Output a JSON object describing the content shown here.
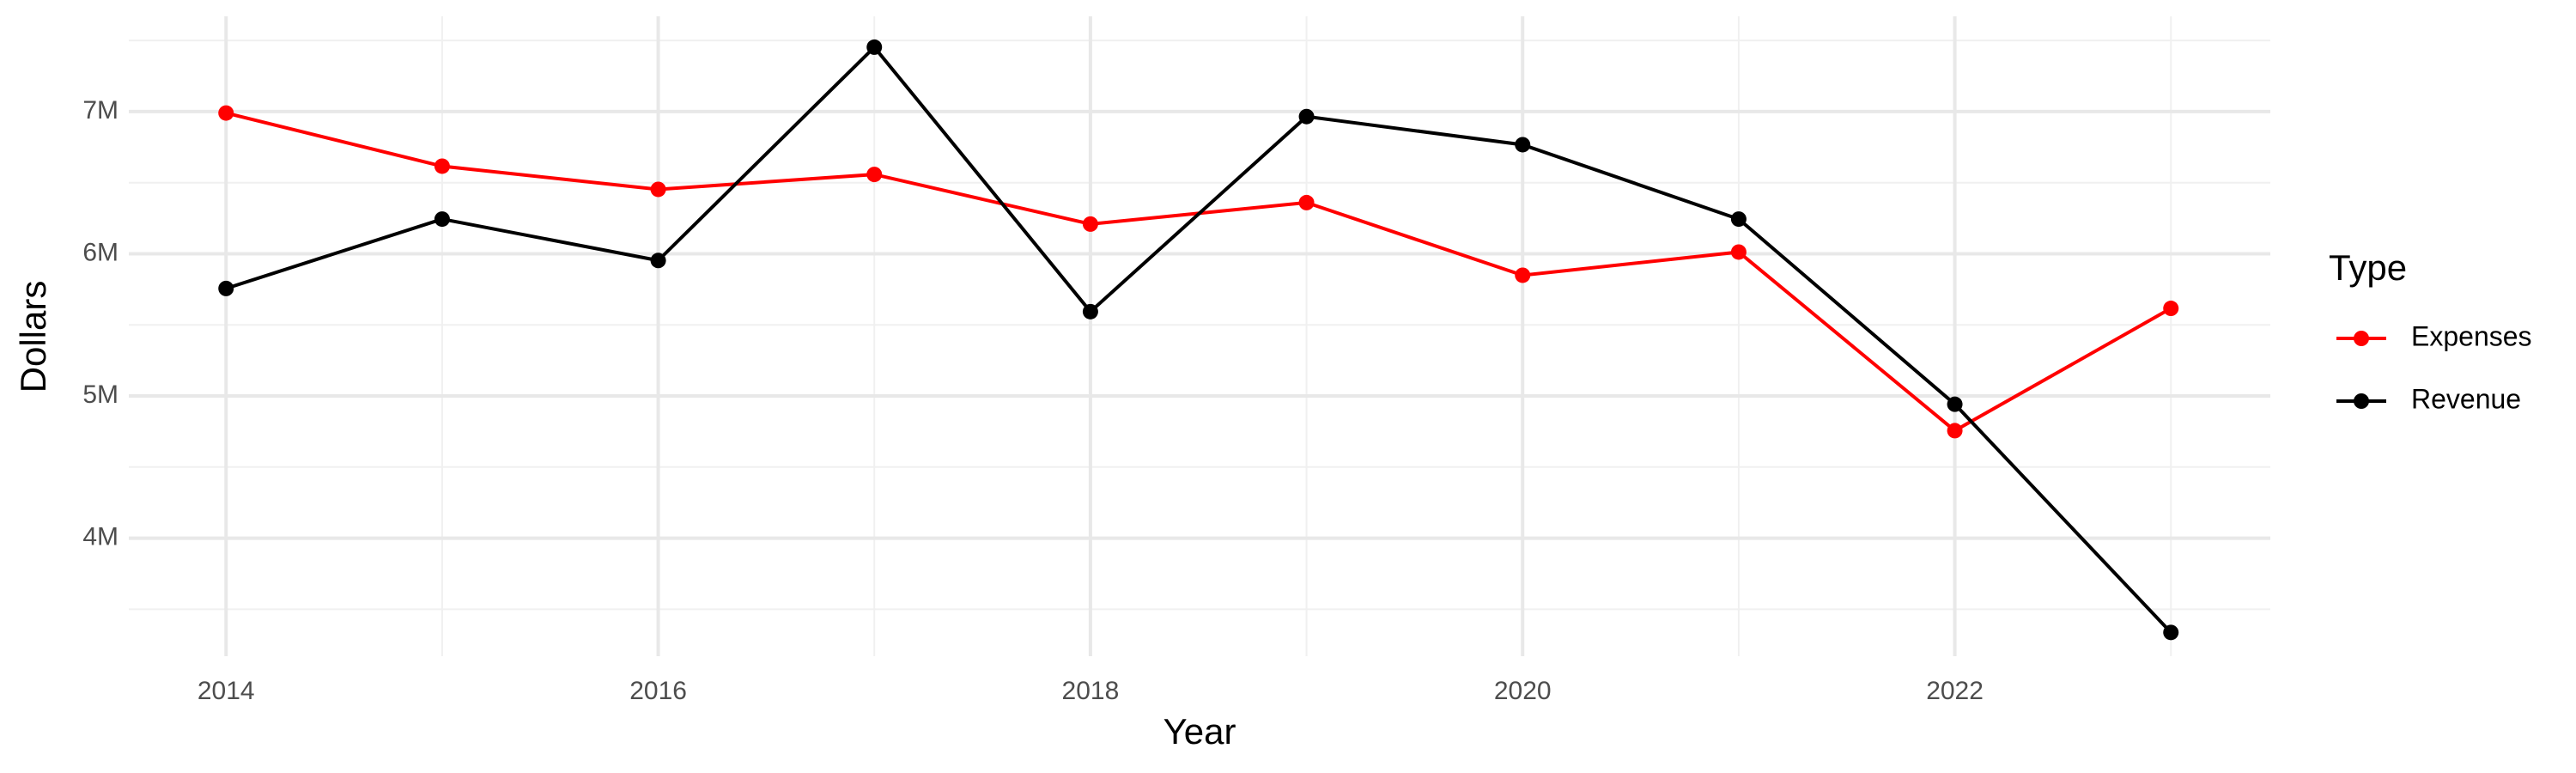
{
  "chart_data": {
    "type": "line",
    "x_label": "Year",
    "y_label": "Dollars",
    "legend_title": "Type",
    "x": [
      2014,
      2015,
      2016,
      2017,
      2018,
      2019,
      2020,
      2021,
      2022,
      2023
    ],
    "series": [
      {
        "name": "Expenses",
        "color": "#ff0000",
        "values": [
          6990000,
          6616000,
          6453000,
          6558000,
          6209000,
          6360000,
          5849000,
          6012000,
          4756000,
          5616000
        ]
      },
      {
        "name": "Revenue",
        "color": "#000000",
        "values": [
          5756000,
          6244000,
          5953000,
          7453000,
          5593000,
          6965000,
          6767000,
          6244000,
          4942000,
          3337000
        ]
      }
    ],
    "xlim": [
      2013.55,
      2023.46
    ],
    "xticks": [
      2014,
      2016,
      2018,
      2020,
      2022
    ],
    "ylim": [
      3170000,
      7670000
    ],
    "yticks": [
      {
        "value": 4000000,
        "label": "4M"
      },
      {
        "value": 5000000,
        "label": "5M"
      },
      {
        "value": 6000000,
        "label": "6M"
      },
      {
        "value": 7000000,
        "label": "7M"
      }
    ],
    "grid": true,
    "legend": "right"
  }
}
